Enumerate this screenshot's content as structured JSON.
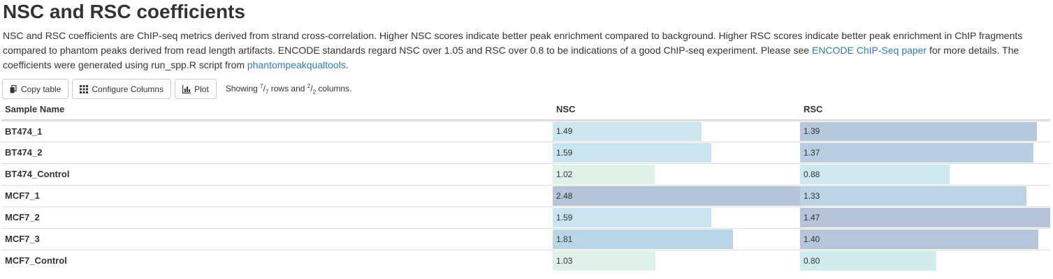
{
  "header": {
    "title": "NSC and RSC coefficients"
  },
  "description": {
    "part1": "NSC and RSC coefficients are ChIP-seq metrics derived from strand cross-correlation. Higher NSC scores indicate better peak enrichment compared to background. Higher RSC scores indicate better peak enrichment in ChIP fragments compared to phantom peaks derived from read length artifacts. ENCODE standards regard NSC over 1.05 and RSC over 0.8 to be indications of a good ChIP-seq experiment. Please see ",
    "link1": "ENCODE ChIP-Seq paper",
    "part2": " for more details. The coefficients were generated using run_spp.R script from ",
    "link2": "phantompeakqualtools",
    "part3": "."
  },
  "toolbar": {
    "copy_label": "Copy table",
    "configure_label": "Configure Columns",
    "plot_label": "Plot",
    "showing_prefix": "Showing ",
    "rows_num": "7",
    "rows_den": "7",
    "rows_suffix": " rows and ",
    "cols_num": "2",
    "cols_den": "2",
    "cols_suffix": " columns."
  },
  "table": {
    "headers": [
      "Sample Name",
      "NSC",
      "RSC"
    ],
    "rows": [
      {
        "name": "BT474_1",
        "nsc": "1.49",
        "rsc": "1.39"
      },
      {
        "name": "BT474_2",
        "nsc": "1.59",
        "rsc": "1.37"
      },
      {
        "name": "BT474_Control",
        "nsc": "1.02",
        "rsc": "0.88"
      },
      {
        "name": "MCF7_1",
        "nsc": "2.48",
        "rsc": "1.33"
      },
      {
        "name": "MCF7_2",
        "nsc": "1.59",
        "rsc": "1.47"
      },
      {
        "name": "MCF7_3",
        "nsc": "1.81",
        "rsc": "1.40"
      },
      {
        "name": "MCF7_Control",
        "nsc": "1.03",
        "rsc": "0.80"
      }
    ]
  },
  "colors": {
    "nsc": [
      "#cbe6ef",
      "#c9e4ee",
      "#dff1e8",
      "#b5c4d8",
      "#c9e4ee",
      "#bad6e6",
      "#dff1e8"
    ],
    "rsc": [
      "#b6c8dc",
      "#b8cde0",
      "#cde8ef",
      "#bcd3e5",
      "#b5c4d8",
      "#b5c6da",
      "#d0ecec"
    ]
  }
}
